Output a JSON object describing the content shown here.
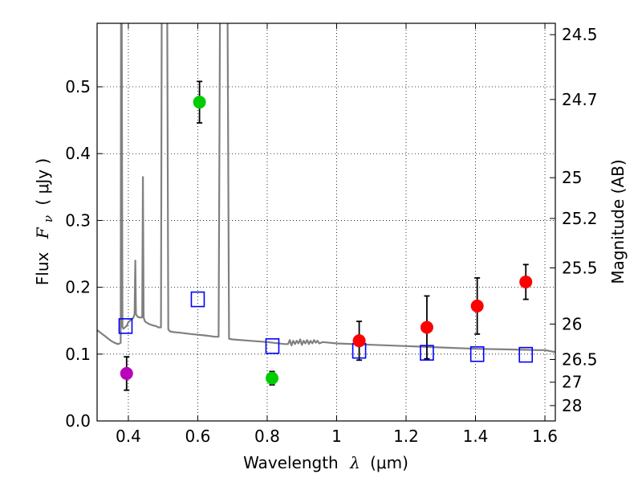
{
  "chart_data": {
    "type": "scatter",
    "xlabel_prefix": "Wavelength",
    "xlabel_symbol": "λ",
    "xlabel_unit": "(μm)",
    "ylabel_prefix": "Flux",
    "ylabel_symbol": "F",
    "ylabel_subscript": "ν",
    "ylabel_unit": "( μJy )",
    "y2label": "Magnitude (AB)",
    "xlim": [
      0.31,
      1.63
    ],
    "ylim": [
      0.0,
      0.595
    ],
    "grid": true,
    "x_ticks": [
      0.4,
      0.6,
      0.8,
      1.0,
      1.2,
      1.4,
      1.6
    ],
    "x_tick_labels": [
      "0.4",
      "0.6",
      "0.8",
      "1",
      "1.2",
      "1.4",
      "1.6"
    ],
    "y_ticks": [
      0.0,
      0.1,
      0.2,
      0.3,
      0.4,
      0.5
    ],
    "y_tick_labels": [
      "0.0",
      "0.1",
      "0.2",
      "0.3",
      "0.4",
      "0.5"
    ],
    "y2_ticks": [
      {
        "flux": 0.578,
        "label": "24.5"
      },
      {
        "flux": 0.481,
        "label": "24.7"
      },
      {
        "flux": 0.364,
        "label": "25"
      },
      {
        "flux": 0.303,
        "label": "25.2"
      },
      {
        "flux": 0.229,
        "label": "25.5"
      },
      {
        "flux": 0.145,
        "label": "26"
      },
      {
        "flux": 0.092,
        "label": "26.5"
      },
      {
        "flux": 0.058,
        "label": "27"
      },
      {
        "flux": 0.023,
        "label": "28"
      }
    ],
    "colors": {
      "model": "#808080",
      "observed_red": "#ff0000",
      "observed_green": "#00cc00",
      "observed_magenta": "#bb00bb",
      "model_photometry": "#0000ff",
      "errorbar": "#000000"
    },
    "series": [
      {
        "name": "observed",
        "points": [
          {
            "x": 0.395,
            "y": 0.071,
            "yerr": 0.025,
            "color": "observed_magenta"
          },
          {
            "x": 0.605,
            "y": 0.477,
            "yerr": 0.031,
            "color": "observed_green"
          },
          {
            "x": 0.814,
            "y": 0.064,
            "yerr": 0.01,
            "color": "observed_green"
          },
          {
            "x": 1.065,
            "y": 0.12,
            "yerr": 0.029,
            "color": "observed_red"
          },
          {
            "x": 1.26,
            "y": 0.14,
            "yerr": 0.047,
            "color": "observed_red"
          },
          {
            "x": 1.405,
            "y": 0.172,
            "yerr": 0.042,
            "color": "observed_red"
          },
          {
            "x": 1.545,
            "y": 0.208,
            "yerr": 0.026,
            "color": "observed_red"
          }
        ]
      },
      {
        "name": "model_photometry",
        "points": [
          {
            "x": 0.392,
            "y": 0.142
          },
          {
            "x": 0.6,
            "y": 0.182
          },
          {
            "x": 0.815,
            "y": 0.112
          },
          {
            "x": 1.065,
            "y": 0.105
          },
          {
            "x": 1.26,
            "y": 0.102
          },
          {
            "x": 1.405,
            "y": 0.1
          },
          {
            "x": 1.545,
            "y": 0.099
          }
        ]
      },
      {
        "name": "model_spectrum",
        "x": [
          0.31,
          0.33,
          0.35,
          0.36,
          0.37,
          0.375,
          0.378,
          0.379,
          0.381,
          0.383,
          0.386,
          0.39,
          0.395,
          0.4,
          0.405,
          0.41,
          0.415,
          0.418,
          0.42,
          0.422,
          0.425,
          0.43,
          0.435,
          0.44,
          0.442,
          0.444,
          0.447,
          0.45,
          0.46,
          0.47,
          0.48,
          0.486,
          0.49,
          0.494,
          0.496,
          0.498,
          0.5,
          0.502,
          0.504,
          0.506,
          0.508,
          0.51,
          0.512,
          0.515,
          0.52,
          0.53,
          0.55,
          0.58,
          0.62,
          0.65,
          0.66,
          0.664,
          0.666,
          0.668,
          0.67,
          0.672,
          0.674,
          0.676,
          0.678,
          0.68,
          0.682,
          0.684,
          0.686,
          0.69,
          0.7,
          0.75,
          0.8,
          0.85,
          0.86,
          0.865,
          0.87,
          0.875,
          0.88,
          0.885,
          0.89,
          0.895,
          0.9,
          0.905,
          0.91,
          0.915,
          0.92,
          0.925,
          0.93,
          0.935,
          0.94,
          0.945,
          0.95,
          0.96,
          1.0,
          1.1,
          1.2,
          1.3,
          1.4,
          1.5,
          1.58,
          1.6,
          1.63
        ],
        "y": [
          0.136,
          0.128,
          0.12,
          0.117,
          0.115,
          0.116,
          0.117,
          0.6,
          0.6,
          0.14,
          0.138,
          0.14,
          0.142,
          0.148,
          0.15,
          0.152,
          0.155,
          0.16,
          0.24,
          0.16,
          0.157,
          0.155,
          0.155,
          0.155,
          0.365,
          0.155,
          0.15,
          0.148,
          0.145,
          0.143,
          0.142,
          0.14,
          0.14,
          0.14,
          0.6,
          0.6,
          0.6,
          0.6,
          0.6,
          0.6,
          0.6,
          0.6,
          0.6,
          0.137,
          0.134,
          0.133,
          0.132,
          0.13,
          0.128,
          0.126,
          0.126,
          0.6,
          0.6,
          0.6,
          0.6,
          0.6,
          0.6,
          0.6,
          0.6,
          0.6,
          0.6,
          0.6,
          0.6,
          0.123,
          0.122,
          0.12,
          0.118,
          0.115,
          0.115,
          0.121,
          0.113,
          0.12,
          0.115,
          0.12,
          0.116,
          0.122,
          0.114,
          0.12,
          0.116,
          0.121,
          0.115,
          0.12,
          0.116,
          0.121,
          0.117,
          0.12,
          0.116,
          0.118,
          0.116,
          0.114,
          0.112,
          0.11,
          0.108,
          0.107,
          0.106,
          0.106,
          0.103
        ]
      }
    ]
  }
}
